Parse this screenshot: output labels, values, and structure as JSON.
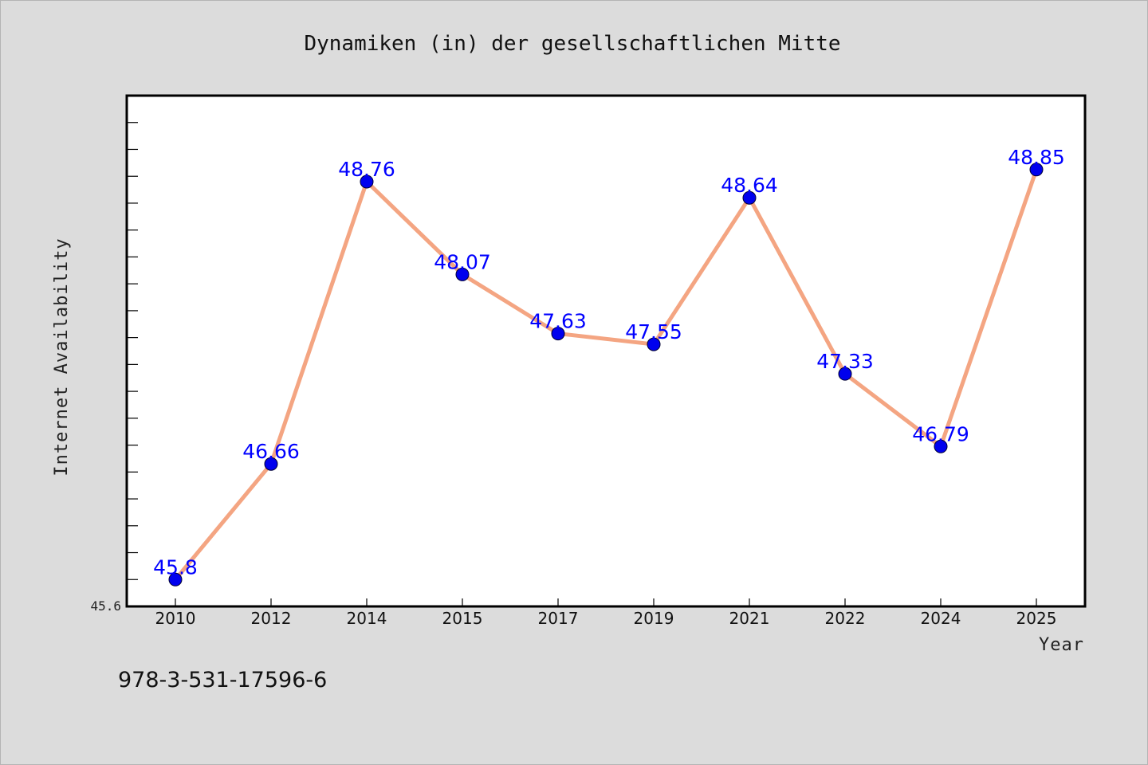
{
  "chart_data": {
    "type": "line",
    "title": "Dynamiken (in) der gesellschaftlichen Mitte",
    "xlabel": "Year",
    "ylabel": "Internet Availability",
    "categories": [
      "2010",
      "2012",
      "2014",
      "2015",
      "2017",
      "2019",
      "2021",
      "2022",
      "2024",
      "2025"
    ],
    "series": [
      {
        "values": [
          45.8,
          46.66,
          48.76,
          48.07,
          47.63,
          47.55,
          48.64,
          47.33,
          46.79,
          48.85
        ],
        "labels": [
          "45.8",
          "46.66",
          "48.76",
          "48.07",
          "47.63",
          "47.55",
          "48.64",
          "47.33",
          "46.79",
          "48.85"
        ]
      }
    ],
    "ylim": [
      45.6,
      49.4
    ],
    "y_min_label": "45.6",
    "grid": false,
    "colors": {
      "line": "#f4a582",
      "marker": "#0000ee",
      "data_label": "#0000ff"
    }
  },
  "footer_code": "978-3-531-17596-6"
}
